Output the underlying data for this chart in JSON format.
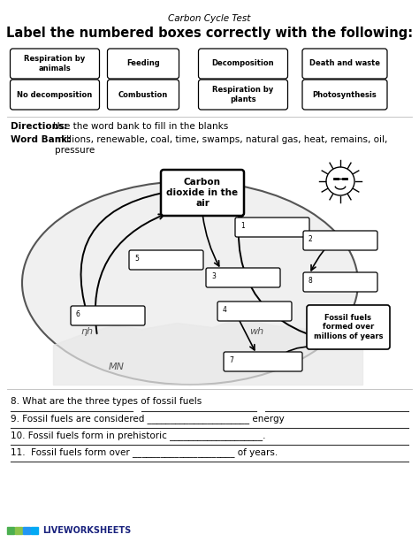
{
  "title": "Carbon Cycle Test",
  "subtitle": "Label the numbered boxes correctly with the following:",
  "directions_label": "Directions:",
  "directions_text": "Use the word bank to fill in the blanks",
  "word_bank_label": "Word Bank:",
  "word_bank_text": "millions, renewable, coal, time, swamps, natural gas, heat, remains, oil,\npressure",
  "label_boxes_row1": [
    "Respiration by\nanimals",
    "Feeding",
    "Decomposition",
    "Death and waste"
  ],
  "label_boxes_row2": [
    "No decomposition",
    "Combustion",
    "Respiration by\nplants",
    "Photosynthesis"
  ],
  "center_box": "Carbon\ndioxide in the\nair",
  "fossil_fuels_box": "Fossil fuels\nformed over\nmillions of years",
  "questions": [
    "8. What are the three types of fossil fuels",
    "9. Fossil fuels are considered ______________________ energy",
    "10. Fossil fuels form in prehistoric ____________________.",
    "11.  Fossil fuels form over ______________________ of years."
  ],
  "bg_color": "#ffffff",
  "text_color": "#000000",
  "box_color": "#ffffff",
  "box_edge": "#000000",
  "lw_colors": [
    "#4caf50",
    "#8bc34a",
    "#2196f3",
    "#03a9f4"
  ]
}
